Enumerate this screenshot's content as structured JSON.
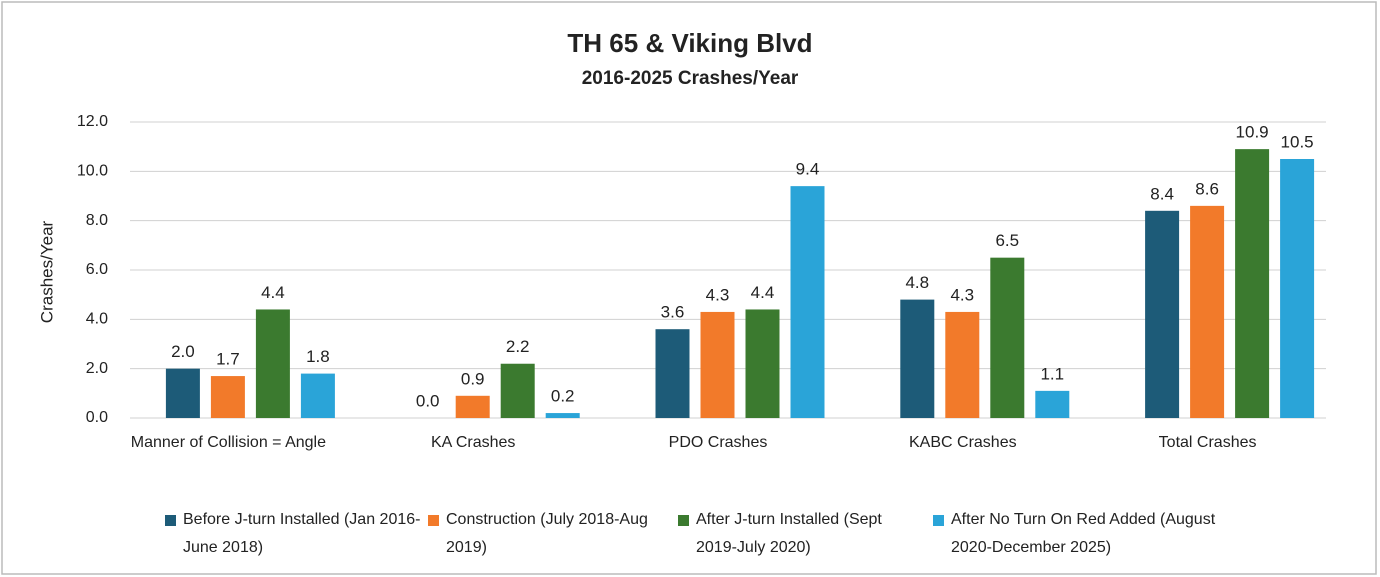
{
  "chart_data": {
    "type": "bar",
    "title": "TH 65 & Viking Blvd",
    "subtitle": "2016-2025 Crashes/Year",
    "y_label": "Crashes/Year",
    "categories": [
      "Manner of Collision = Angle",
      "KA Crashes",
      "PDO Crashes",
      "KABC Crashes",
      "Total Crashes"
    ],
    "series": [
      {
        "name": "Before J-turn Installed (Jan 2016-June 2018)",
        "color": "#1d5b78",
        "values": [
          2.0,
          0.0,
          3.6,
          4.8,
          8.4
        ],
        "value_labels": [
          "2.0",
          "0.0",
          "3.6",
          "4.8",
          "8.4"
        ]
      },
      {
        "name": "Construction (July 2018-Aug 2019)",
        "color": "#f27a2a",
        "values": [
          1.7,
          0.9,
          4.3,
          4.3,
          8.6
        ],
        "value_labels": [
          "1.7",
          "0.9",
          "4.3",
          "4.3",
          "8.6"
        ]
      },
      {
        "name": "After J-turn Installed (Sept 2019-July 2020)",
        "color": "#3b7a2f",
        "values": [
          4.4,
          2.2,
          4.4,
          6.5,
          10.9
        ],
        "value_labels": [
          "4.4",
          "2.2",
          "4.4",
          "6.5",
          "10.9"
        ]
      },
      {
        "name": "After No Turn On Red Added (August 2020-December 2025)",
        "color": "#2aa4d8",
        "values": [
          1.8,
          0.2,
          9.4,
          1.1,
          10.5
        ],
        "value_labels": [
          "1.8",
          "0.2",
          "9.4",
          "1.1",
          "10.5"
        ]
      }
    ],
    "ylim": [
      0,
      12
    ],
    "yticks": [
      {
        "value": 0,
        "label": "0.0"
      },
      {
        "value": 2,
        "label": "2.0"
      },
      {
        "value": 4,
        "label": "4.0"
      },
      {
        "value": 6,
        "label": "6.0"
      },
      {
        "value": 8,
        "label": "8.0"
      },
      {
        "value": 10,
        "label": "10.0"
      },
      {
        "value": 12,
        "label": "12.0"
      }
    ],
    "grid": true
  }
}
